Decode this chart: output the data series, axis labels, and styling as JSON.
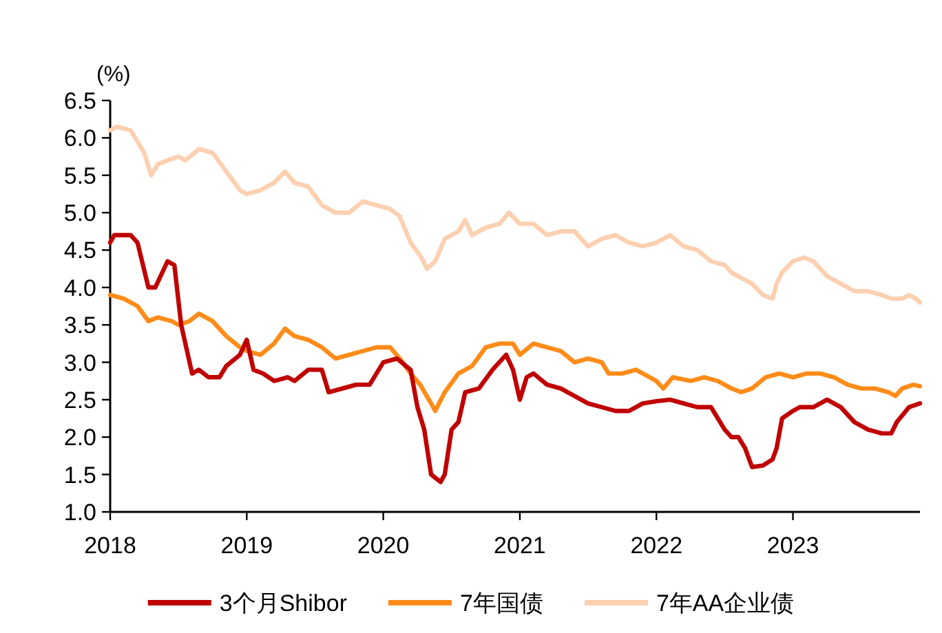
{
  "chart_data": {
    "type": "line",
    "ylabel": "(%)",
    "xlim": [
      2018,
      2023.93
    ],
    "xticks": [
      2018,
      2019,
      2020,
      2021,
      2022,
      2023
    ],
    "ylim": [
      1,
      6.5
    ],
    "yticks": [
      {
        "value": 1,
        "label": "1.0"
      },
      {
        "value": 1.5,
        "label": "1.5"
      },
      {
        "value": 2,
        "label": "2.0"
      },
      {
        "value": 2.5,
        "label": "2.5"
      },
      {
        "value": 3,
        "label": "3.0"
      },
      {
        "value": 3.5,
        "label": "3.5"
      },
      {
        "value": 4,
        "label": "4.0"
      },
      {
        "value": 4.5,
        "label": "4.5"
      },
      {
        "value": 5,
        "label": "5.0"
      },
      {
        "value": 5.5,
        "label": "5.5"
      },
      {
        "value": 6,
        "label": "6.0"
      },
      {
        "value": 6.5,
        "label": "6.5"
      }
    ],
    "grid": false,
    "legend": "bottom",
    "marker": "none",
    "line_style": "solid",
    "series": [
      {
        "name": "3个月Shibor",
        "color": "#c00000",
        "x": [
          2018.0,
          2018.03,
          2018.15,
          2018.2,
          2018.28,
          2018.33,
          2018.42,
          2018.47,
          2018.52,
          2018.6,
          2018.65,
          2018.72,
          2018.8,
          2018.85,
          2018.95,
          2019.0,
          2019.05,
          2019.12,
          2019.2,
          2019.3,
          2019.35,
          2019.45,
          2019.55,
          2019.6,
          2019.7,
          2019.8,
          2019.9,
          2020.0,
          2020.1,
          2020.2,
          2020.25,
          2020.3,
          2020.35,
          2020.42,
          2020.45,
          2020.5,
          2020.55,
          2020.6,
          2020.7,
          2020.8,
          2020.9,
          2020.95,
          2021.0,
          2021.05,
          2021.1,
          2021.2,
          2021.3,
          2021.4,
          2021.5,
          2021.6,
          2021.7,
          2021.8,
          2021.9,
          2022.0,
          2022.1,
          2022.2,
          2022.3,
          2022.4,
          2022.5,
          2022.55,
          2022.6,
          2022.65,
          2022.7,
          2022.78,
          2022.85,
          2022.88,
          2022.92,
          2023.0,
          2023.05,
          2023.15,
          2023.25,
          2023.35,
          2023.45,
          2023.55,
          2023.65,
          2023.72,
          2023.76,
          2023.85,
          2023.93
        ],
        "values": [
          4.6,
          4.7,
          4.7,
          4.6,
          4.0,
          4.0,
          4.35,
          4.3,
          3.5,
          2.85,
          2.9,
          2.8,
          2.8,
          2.95,
          3.1,
          3.3,
          2.9,
          2.85,
          2.75,
          2.8,
          2.75,
          2.9,
          2.9,
          2.6,
          2.65,
          2.7,
          2.7,
          3.0,
          3.05,
          2.9,
          2.4,
          2.1,
          1.5,
          1.4,
          1.5,
          2.1,
          2.2,
          2.6,
          2.65,
          2.9,
          3.1,
          2.9,
          2.5,
          2.8,
          2.85,
          2.7,
          2.65,
          2.55,
          2.45,
          2.4,
          2.35,
          2.35,
          2.45,
          2.48,
          2.5,
          2.45,
          2.4,
          2.4,
          2.1,
          2.0,
          2.0,
          1.85,
          1.6,
          1.62,
          1.7,
          1.85,
          2.25,
          2.35,
          2.4,
          2.4,
          2.5,
          2.4,
          2.2,
          2.1,
          2.05,
          2.05,
          2.2,
          2.4,
          2.45
        ]
      },
      {
        "name": "7年国债",
        "color": "#ff8c1a",
        "x": [
          2018.0,
          2018.1,
          2018.2,
          2018.28,
          2018.35,
          2018.45,
          2018.5,
          2018.58,
          2018.65,
          2018.75,
          2018.85,
          2018.95,
          2019.0,
          2019.1,
          2019.2,
          2019.28,
          2019.35,
          2019.45,
          2019.55,
          2019.65,
          2019.75,
          2019.85,
          2019.95,
          2020.05,
          2020.12,
          2020.2,
          2020.27,
          2020.35,
          2020.38,
          2020.45,
          2020.55,
          2020.65,
          2020.75,
          2020.85,
          2020.95,
          2021.0,
          2021.1,
          2021.2,
          2021.3,
          2021.4,
          2021.5,
          2021.6,
          2021.65,
          2021.75,
          2021.85,
          2021.95,
          2022.0,
          2022.05,
          2022.12,
          2022.25,
          2022.35,
          2022.45,
          2022.55,
          2022.62,
          2022.7,
          2022.8,
          2022.9,
          2023.0,
          2023.1,
          2023.2,
          2023.3,
          2023.4,
          2023.5,
          2023.6,
          2023.7,
          2023.75,
          2023.8,
          2023.88,
          2023.93
        ],
        "values": [
          3.9,
          3.85,
          3.75,
          3.55,
          3.6,
          3.55,
          3.5,
          3.55,
          3.65,
          3.55,
          3.35,
          3.2,
          3.15,
          3.1,
          3.25,
          3.45,
          3.35,
          3.3,
          3.2,
          3.05,
          3.1,
          3.15,
          3.2,
          3.2,
          3.05,
          2.85,
          2.7,
          2.45,
          2.35,
          2.6,
          2.85,
          2.95,
          3.2,
          3.25,
          3.25,
          3.1,
          3.25,
          3.2,
          3.15,
          3.0,
          3.05,
          3.0,
          2.85,
          2.85,
          2.9,
          2.8,
          2.75,
          2.65,
          2.8,
          2.75,
          2.8,
          2.75,
          2.65,
          2.6,
          2.65,
          2.8,
          2.85,
          2.8,
          2.85,
          2.85,
          2.8,
          2.7,
          2.65,
          2.65,
          2.6,
          2.55,
          2.65,
          2.7,
          2.68
        ]
      },
      {
        "name": "7年AA企业债",
        "color": "#fcd0b0",
        "x": [
          2018.0,
          2018.05,
          2018.15,
          2018.2,
          2018.25,
          2018.3,
          2018.35,
          2018.42,
          2018.5,
          2018.55,
          2018.65,
          2018.75,
          2018.85,
          2018.95,
          2019.0,
          2019.1,
          2019.2,
          2019.28,
          2019.35,
          2019.45,
          2019.55,
          2019.65,
          2019.75,
          2019.85,
          2019.95,
          2020.05,
          2020.12,
          2020.2,
          2020.28,
          2020.32,
          2020.38,
          2020.45,
          2020.55,
          2020.6,
          2020.65,
          2020.75,
          2020.85,
          2020.92,
          2021.0,
          2021.1,
          2021.2,
          2021.3,
          2021.4,
          2021.5,
          2021.6,
          2021.7,
          2021.8,
          2021.9,
          2022.0,
          2022.1,
          2022.2,
          2022.3,
          2022.4,
          2022.5,
          2022.55,
          2022.65,
          2022.7,
          2022.78,
          2022.85,
          2022.88,
          2022.92,
          2023.0,
          2023.08,
          2023.15,
          2023.25,
          2023.35,
          2023.45,
          2023.55,
          2023.65,
          2023.72,
          2023.8,
          2023.85,
          2023.9,
          2023.93
        ],
        "values": [
          6.1,
          6.15,
          6.1,
          5.95,
          5.8,
          5.5,
          5.65,
          5.7,
          5.75,
          5.7,
          5.85,
          5.8,
          5.55,
          5.3,
          5.25,
          5.3,
          5.4,
          5.55,
          5.4,
          5.35,
          5.1,
          5.0,
          5.0,
          5.15,
          5.1,
          5.05,
          4.95,
          4.6,
          4.4,
          4.25,
          4.35,
          4.65,
          4.75,
          4.9,
          4.7,
          4.8,
          4.85,
          5.0,
          4.85,
          4.85,
          4.7,
          4.75,
          4.75,
          4.55,
          4.65,
          4.7,
          4.6,
          4.55,
          4.6,
          4.7,
          4.55,
          4.5,
          4.35,
          4.3,
          4.2,
          4.1,
          4.05,
          3.9,
          3.85,
          4.05,
          4.2,
          4.35,
          4.4,
          4.35,
          4.15,
          4.05,
          3.95,
          3.95,
          3.9,
          3.85,
          3.85,
          3.9,
          3.85,
          3.8
        ]
      }
    ]
  }
}
